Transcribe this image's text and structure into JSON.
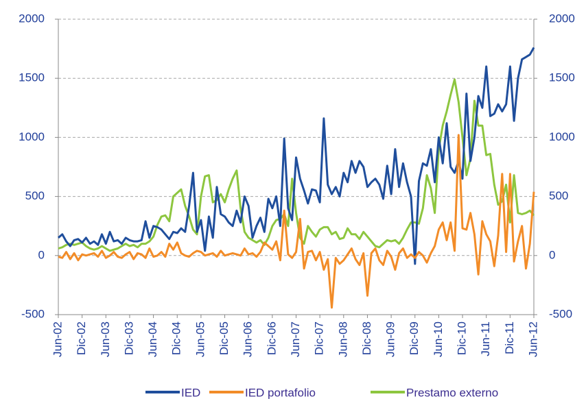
{
  "chart_data": {
    "type": "line",
    "categories": [
      "Jun-02",
      null,
      null,
      null,
      null,
      null,
      "Dic-02",
      null,
      null,
      null,
      null,
      null,
      "Jun-03",
      null,
      null,
      null,
      null,
      null,
      "Dic-03",
      null,
      null,
      null,
      null,
      null,
      "Jun-04",
      null,
      null,
      null,
      null,
      null,
      "Dic-04",
      null,
      null,
      null,
      null,
      null,
      "Jun-05",
      null,
      null,
      null,
      null,
      null,
      "Dic-05",
      null,
      null,
      null,
      null,
      null,
      "Jun-06",
      null,
      null,
      null,
      null,
      null,
      "Dic-06",
      null,
      null,
      null,
      null,
      null,
      "Jun-07",
      null,
      null,
      null,
      null,
      null,
      "Dic-07",
      null,
      null,
      null,
      null,
      null,
      "Jun-08",
      null,
      null,
      null,
      null,
      null,
      "Dic-08",
      null,
      null,
      null,
      null,
      null,
      "Jun-09",
      null,
      null,
      null,
      null,
      null,
      "Dic-09",
      null,
      null,
      null,
      null,
      null,
      "Jun-10",
      null,
      null,
      null,
      null,
      null,
      "Dic-10",
      null,
      null,
      null,
      null,
      null,
      "Jun-11",
      null,
      null,
      null,
      null,
      null,
      "Dic-11",
      null,
      null,
      null,
      null,
      null,
      "Jun-12"
    ],
    "series": [
      {
        "name": "IED",
        "color": "#1f4e9c",
        "values": [
          150,
          180,
          120,
          80,
          130,
          140,
          110,
          150,
          100,
          120,
          90,
          180,
          100,
          200,
          120,
          130,
          100,
          150,
          130,
          120,
          120,
          130,
          290,
          150,
          250,
          240,
          220,
          180,
          140,
          200,
          190,
          230,
          200,
          420,
          700,
          200,
          300,
          40,
          330,
          150,
          580,
          350,
          330,
          280,
          250,
          380,
          280,
          500,
          420,
          150,
          250,
          320,
          200,
          480,
          400,
          500,
          250,
          990,
          400,
          300,
          830,
          650,
          550,
          440,
          560,
          550,
          450,
          1160,
          600,
          520,
          580,
          500,
          700,
          620,
          800,
          700,
          800,
          750,
          580,
          620,
          650,
          600,
          480,
          760,
          520,
          900,
          580,
          780,
          620,
          500,
          -70,
          630,
          780,
          760,
          900,
          620,
          1000,
          780,
          1120,
          750,
          700,
          800,
          650,
          1370,
          800,
          1000,
          1350,
          1250,
          1600,
          1180,
          1200,
          1280,
          1220,
          1280,
          1600,
          1140,
          1500,
          1660,
          1680,
          1700,
          1760
        ]
      },
      {
        "name": "IED portafolio",
        "color": "#f28c28",
        "values": [
          -10,
          -20,
          30,
          -30,
          20,
          -40,
          10,
          0,
          10,
          20,
          -10,
          40,
          -20,
          0,
          30,
          -10,
          -20,
          10,
          30,
          -30,
          20,
          10,
          -20,
          60,
          -10,
          0,
          30,
          -10,
          100,
          50,
          110,
          20,
          0,
          -10,
          20,
          40,
          30,
          0,
          10,
          20,
          -10,
          40,
          0,
          10,
          20,
          10,
          0,
          60,
          10,
          20,
          -10,
          30,
          110,
          80,
          50,
          120,
          -40,
          380,
          10,
          -20,
          30,
          310,
          -110,
          30,
          40,
          -40,
          30,
          -120,
          -30,
          -440,
          -20,
          -70,
          -40,
          10,
          60,
          -30,
          -80,
          20,
          -340,
          20,
          60,
          -40,
          -80,
          40,
          -10,
          -120,
          20,
          60,
          -20,
          10,
          -20,
          30,
          0,
          -60,
          20,
          80,
          220,
          280,
          130,
          280,
          40,
          1020,
          230,
          220,
          360,
          180,
          -160,
          290,
          180,
          120,
          -90,
          170,
          690,
          30,
          690,
          -50,
          120,
          250,
          -110,
          100,
          540
        ]
      },
      {
        "name": "Prestamo externo",
        "color": "#8dc63f",
        "values": [
          60,
          70,
          90,
          100,
          90,
          100,
          110,
          80,
          60,
          50,
          60,
          80,
          60,
          40,
          50,
          60,
          80,
          100,
          80,
          90,
          70,
          100,
          100,
          120,
          160,
          260,
          330,
          340,
          290,
          500,
          530,
          560,
          420,
          330,
          220,
          180,
          500,
          670,
          680,
          450,
          470,
          520,
          450,
          560,
          650,
          720,
          400,
          200,
          150,
          130,
          110,
          130,
          90,
          150,
          250,
          300,
          310,
          350,
          250,
          650,
          360,
          150,
          100,
          250,
          200,
          160,
          220,
          240,
          240,
          180,
          200,
          140,
          150,
          230,
          180,
          180,
          140,
          200,
          160,
          120,
          80,
          70,
          100,
          130,
          120,
          130,
          100,
          150,
          220,
          280,
          280,
          270,
          400,
          680,
          570,
          360,
          900,
          1100,
          1220,
          1360,
          1490,
          1300,
          1000,
          680,
          820,
          1310,
          1100,
          1100,
          850,
          860,
          600,
          430,
          460,
          600,
          280,
          680,
          360,
          350,
          360,
          380,
          340
        ]
      }
    ],
    "ylim": [
      -500,
      2000
    ],
    "yticks": [
      -500,
      0,
      500,
      1000,
      1500,
      2000
    ],
    "y2lim": [
      -500,
      2000
    ],
    "y2ticks": [
      -500,
      0,
      500,
      1000,
      1500,
      2000
    ],
    "grid": true
  }
}
